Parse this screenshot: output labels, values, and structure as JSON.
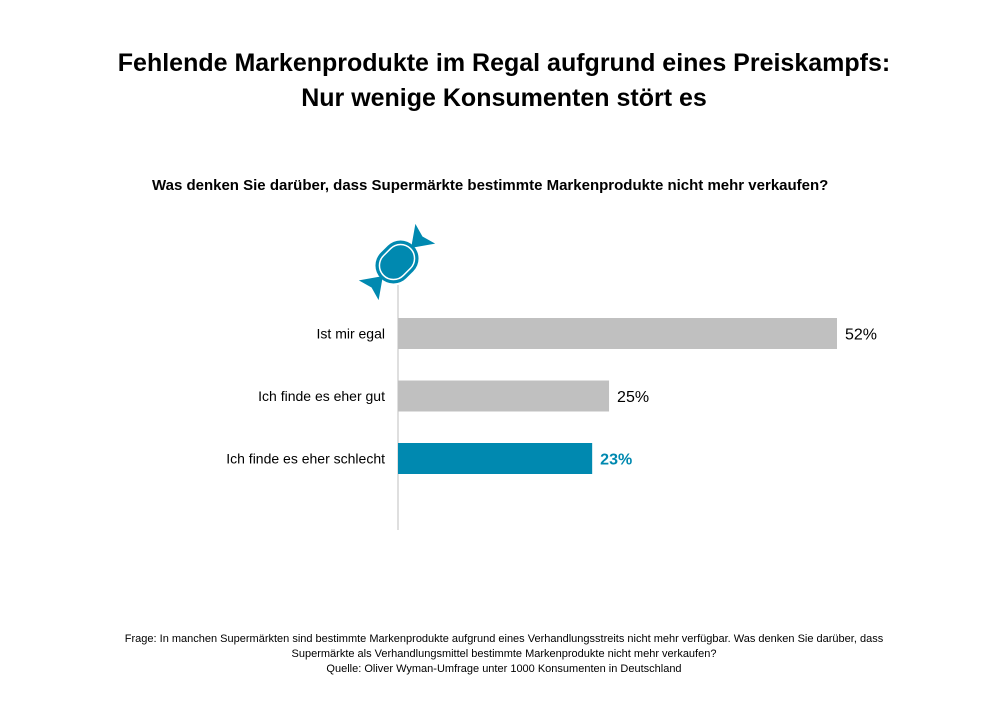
{
  "title": {
    "line1": "Fehlende Markenprodukte im Regal aufgrund eines Preiskampfs:",
    "line2": "Nur wenige Konsumenten stört es"
  },
  "question": "Was denken Sie darüber, dass Supermärkte bestimmte Markenprodukte nicht mehr verkaufen?",
  "colors": {
    "neutral_bar": "#c0c0c0",
    "accent": "#0089b0",
    "axis": "#bfbfbf"
  },
  "icon": "candy-icon",
  "chart_data": {
    "type": "bar",
    "orientation": "horizontal",
    "categories": [
      "Ist mir egal",
      "Ich finde es eher gut",
      "Ich finde es eher schlecht"
    ],
    "values": [
      52,
      25,
      23
    ],
    "value_labels": [
      "52%",
      "25%",
      "23%"
    ],
    "highlight": [
      false,
      false,
      true
    ],
    "xlim": [
      0,
      52
    ]
  },
  "footnote": {
    "question_line1": "Frage:  In manchen Supermärkten  sind bestimmte Markenprodukte aufgrund eines Verhandlungsstreits nicht mehr verfügbar. Was denken Sie darüber, dass",
    "question_line2": "Supermärkte als Verhandlungsmittel bestimmte Markenprodukte nicht mehr verkaufen?",
    "source": "Quelle: Oliver Wyman-Umfrage unter  1000 Konsumenten  in Deutschland"
  }
}
